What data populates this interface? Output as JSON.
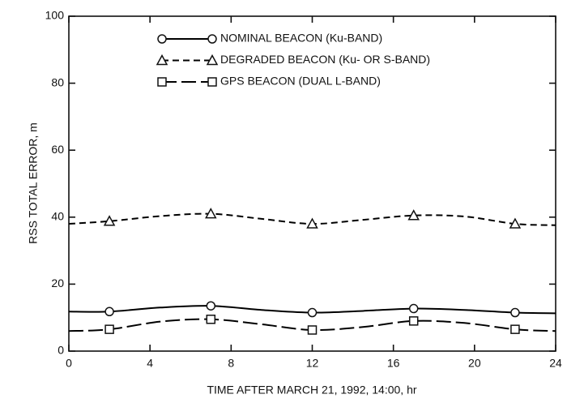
{
  "chart_data": {
    "type": "line",
    "xlabel": "TIME AFTER MARCH 21, 1992, 14:00, hr",
    "ylabel": "RSS TOTAL ERROR, m",
    "x": [
      0,
      2,
      4.5,
      7,
      9.5,
      12,
      14.5,
      17,
      19.5,
      22,
      24
    ],
    "xlim": [
      0,
      24
    ],
    "xticks": [
      0,
      4,
      8,
      12,
      16,
      20,
      24
    ],
    "ylim": [
      0,
      100
    ],
    "yticks": [
      0,
      20,
      40,
      60,
      80,
      100
    ],
    "series": [
      {
        "name": "NOMINAL BEACON (Ku-BAND)",
        "color": "#000000",
        "dash": "solid",
        "marker": "circle",
        "values": [
          11.8,
          11.8,
          13.0,
          13.5,
          12.3,
          11.5,
          12.0,
          12.7,
          12.3,
          11.5,
          11.3
        ]
      },
      {
        "name": "DEGRADED BEACON (Ku- OR  S-BAND)",
        "color": "#000000",
        "dash": "short",
        "marker": "triangle",
        "values": [
          38.0,
          38.8,
          40.3,
          41.0,
          39.5,
          38.0,
          39.2,
          40.5,
          40.2,
          38.0,
          37.6
        ]
      },
      {
        "name": "GPS BEACON (DUAL L-BAND)",
        "color": "#000000",
        "dash": "long",
        "marker": "square",
        "values": [
          6.0,
          6.5,
          8.8,
          9.5,
          8.0,
          6.3,
          7.2,
          9.0,
          8.4,
          6.5,
          6.0
        ]
      }
    ]
  }
}
